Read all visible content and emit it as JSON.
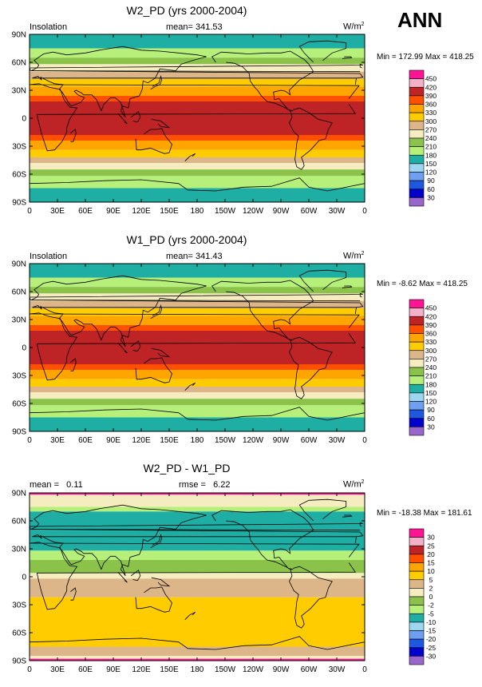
{
  "season": "ANN",
  "chart_data": [
    {
      "type": "heatmap",
      "title": "W2_PD (yrs 2000-2004)",
      "left_label": "Insolation",
      "center_label": "mean= 341.53",
      "units": "W/m",
      "units_sup": "2",
      "stats": "Min = 172.99 Max = 418.25",
      "x_ticks": [
        "0",
        "30E",
        "60E",
        "90E",
        "120E",
        "150E",
        "180",
        "150W",
        "120W",
        "90W",
        "60W",
        "30W",
        "0"
      ],
      "y_ticks": [
        "90N",
        "60N",
        "30N",
        "0",
        "30S",
        "60S",
        "90S"
      ],
      "xlim": [
        0,
        360
      ],
      "ylim": [
        -90,
        90
      ],
      "colorbar_labels": [
        "450",
        "420",
        "390",
        "360",
        "330",
        "300",
        "270",
        "240",
        "210",
        "180",
        "150",
        "120",
        "90",
        "60",
        "30"
      ],
      "bands": [
        {
          "lat_min": 75,
          "lat_max": 90,
          "value": 175
        },
        {
          "lat_min": 65,
          "lat_max": 75,
          "value": 205
        },
        {
          "lat_min": 58,
          "lat_max": 65,
          "value": 235
        },
        {
          "lat_min": 50,
          "lat_max": 58,
          "value": 265
        },
        {
          "lat_min": 42,
          "lat_max": 50,
          "value": 295
        },
        {
          "lat_min": 34,
          "lat_max": 42,
          "value": 325
        },
        {
          "lat_min": 24,
          "lat_max": 34,
          "value": 355
        },
        {
          "lat_min": 18,
          "lat_max": 24,
          "value": 385
        },
        {
          "lat_min": -18,
          "lat_max": 18,
          "value": 400
        },
        {
          "lat_min": -24,
          "lat_max": -18,
          "value": 385
        },
        {
          "lat_min": -34,
          "lat_max": -24,
          "value": 355
        },
        {
          "lat_min": -42,
          "lat_max": -34,
          "value": 325
        },
        {
          "lat_min": -48,
          "lat_max": -42,
          "value": 295
        },
        {
          "lat_min": -55,
          "lat_max": -48,
          "value": 265
        },
        {
          "lat_min": -62,
          "lat_max": -55,
          "value": 235
        },
        {
          "lat_min": -75,
          "lat_max": -62,
          "value": 205
        },
        {
          "lat_min": -90,
          "lat_max": -75,
          "value": 175
        }
      ]
    },
    {
      "type": "heatmap",
      "title": "W1_PD (yrs 2000-2004)",
      "left_label": "Insolation",
      "center_label": "mean= 341.43",
      "units": "W/m",
      "units_sup": "2",
      "stats": "Min = -8.62 Max = 418.25",
      "x_ticks": [
        "0",
        "30E",
        "60E",
        "90E",
        "120E",
        "150E",
        "180",
        "150W",
        "120W",
        "90W",
        "60W",
        "30W",
        "0"
      ],
      "y_ticks": [
        "90N",
        "60N",
        "30N",
        "0",
        "30S",
        "60S",
        "90S"
      ],
      "xlim": [
        0,
        360
      ],
      "ylim": [
        -90,
        90
      ],
      "colorbar_labels": [
        "450",
        "420",
        "390",
        "360",
        "330",
        "300",
        "270",
        "240",
        "210",
        "180",
        "150",
        "120",
        "90",
        "60",
        "30"
      ],
      "bands": [
        {
          "lat_min": 75,
          "lat_max": 90,
          "value": 175
        },
        {
          "lat_min": 65,
          "lat_max": 75,
          "value": 205
        },
        {
          "lat_min": 58,
          "lat_max": 65,
          "value": 235
        },
        {
          "lat_min": 50,
          "lat_max": 58,
          "value": 265
        },
        {
          "lat_min": 42,
          "lat_max": 50,
          "value": 295
        },
        {
          "lat_min": 34,
          "lat_max": 42,
          "value": 325
        },
        {
          "lat_min": 24,
          "lat_max": 34,
          "value": 355
        },
        {
          "lat_min": 18,
          "lat_max": 24,
          "value": 385
        },
        {
          "lat_min": -18,
          "lat_max": 18,
          "value": 400
        },
        {
          "lat_min": -24,
          "lat_max": -18,
          "value": 385
        },
        {
          "lat_min": -34,
          "lat_max": -24,
          "value": 355
        },
        {
          "lat_min": -42,
          "lat_max": -34,
          "value": 325
        },
        {
          "lat_min": -48,
          "lat_max": -42,
          "value": 295
        },
        {
          "lat_min": -55,
          "lat_max": -48,
          "value": 265
        },
        {
          "lat_min": -62,
          "lat_max": -55,
          "value": 235
        },
        {
          "lat_min": -75,
          "lat_max": -62,
          "value": 205
        },
        {
          "lat_min": -90,
          "lat_max": -75,
          "value": 175
        }
      ]
    },
    {
      "type": "heatmap",
      "title": "W2_PD - W1_PD",
      "left_label": "mean =   0.11",
      "center_label": "rmse =   6.22",
      "units": "W/m",
      "units_sup": "2",
      "stats": "Min = -18.38 Max = 181.61",
      "x_ticks": [
        "0",
        "30E",
        "60E",
        "90E",
        "120E",
        "150E",
        "180",
        "150W",
        "120W",
        "90W",
        "60W",
        "30W",
        "0"
      ],
      "y_ticks": [
        "90N",
        "60N",
        "30N",
        "0",
        "30S",
        "60S",
        "90S"
      ],
      "xlim": [
        0,
        360
      ],
      "ylim": [
        -90,
        90
      ],
      "colorbar_labels": [
        "30",
        "25",
        "20",
        "15",
        "10",
        "5",
        "2",
        "0",
        "-2",
        "-5",
        "-10",
        "-15",
        "-20",
        "-25",
        "-30"
      ],
      "bands": [
        {
          "lat_min": 88,
          "lat_max": 90,
          "value": 32
        },
        {
          "lat_min": 75,
          "lat_max": 88,
          "value": 1
        },
        {
          "lat_min": 70,
          "lat_max": 75,
          "value": -3
        },
        {
          "lat_min": 28,
          "lat_max": 70,
          "value": -7
        },
        {
          "lat_min": 18,
          "lat_max": 28,
          "value": -3
        },
        {
          "lat_min": 4,
          "lat_max": 18,
          "value": -1
        },
        {
          "lat_min": -2,
          "lat_max": 4,
          "value": 1
        },
        {
          "lat_min": -22,
          "lat_max": -2,
          "value": 3
        },
        {
          "lat_min": -75,
          "lat_max": -22,
          "value": 7
        },
        {
          "lat_min": -85,
          "lat_max": -75,
          "value": 3
        },
        {
          "lat_min": -88,
          "lat_max": -85,
          "value": 1
        },
        {
          "lat_min": -90,
          "lat_max": -88,
          "value": 32
        }
      ]
    }
  ],
  "colors": {
    "palette": [
      "#9966cc",
      "#0000cc",
      "#1e58e0",
      "#6e9ff0",
      "#9cd6f0",
      "#1faea3",
      "#b6f07a",
      "#8bc34a",
      "#f5ecc0",
      "#dcb588",
      "#ffcc00",
      "#ffa500",
      "#ff5000",
      "#be2425",
      "#f4b0c8",
      "#ff1493"
    ],
    "frame": "#000000"
  }
}
